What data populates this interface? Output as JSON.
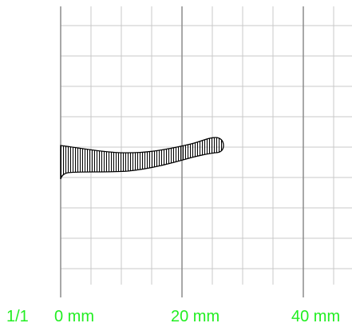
{
  "colors": {
    "grid": "#c8c8c8",
    "axis": "#8c8c8c",
    "label": "#22ee22",
    "shape": "#000000"
  },
  "page_indicator": "1/1",
  "scale": {
    "unit": "mm",
    "labels": [
      "0 mm",
      "20 mm",
      "40 mm"
    ]
  },
  "shape": {
    "name": "hatched-tapered-profile",
    "hatching": "vertical"
  }
}
